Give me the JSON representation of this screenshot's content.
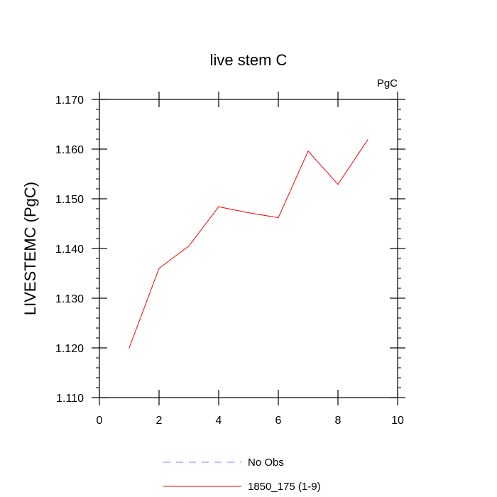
{
  "chart_data": {
    "type": "line",
    "title": "live stem C",
    "units_label": "PgC",
    "xlabel": "",
    "ylabel": "LIVESTEMC  (PgC)",
    "xlim": [
      0,
      10
    ],
    "ylim": [
      1.11,
      1.17
    ],
    "x_ticks": [
      0,
      2,
      4,
      6,
      8,
      10
    ],
    "x_tick_labels": [
      "0",
      "2",
      "4",
      "6",
      "8",
      "10"
    ],
    "y_ticks": [
      1.11,
      1.12,
      1.13,
      1.14,
      1.15,
      1.16,
      1.17
    ],
    "y_tick_labels": [
      "1.110",
      "1.120",
      "1.130",
      "1.140",
      "1.150",
      "1.160",
      "1.170"
    ],
    "grid": false,
    "legend_position": "bottom-center",
    "series": [
      {
        "name": "1850_175 (1-9)",
        "color": "#ff0000",
        "style": "solid",
        "x": [
          1,
          2,
          3,
          4,
          5,
          6,
          7,
          8,
          9
        ],
        "y": [
          1.12,
          1.136,
          1.1405,
          1.1484,
          1.1472,
          1.1462,
          1.1596,
          1.1529,
          1.1619
        ]
      }
    ],
    "legend": [
      {
        "label": "No Obs",
        "color": "#8080ff",
        "style": "dashed"
      },
      {
        "label": "1850_175 (1-9)",
        "color": "#ff0000",
        "style": "solid"
      }
    ]
  }
}
